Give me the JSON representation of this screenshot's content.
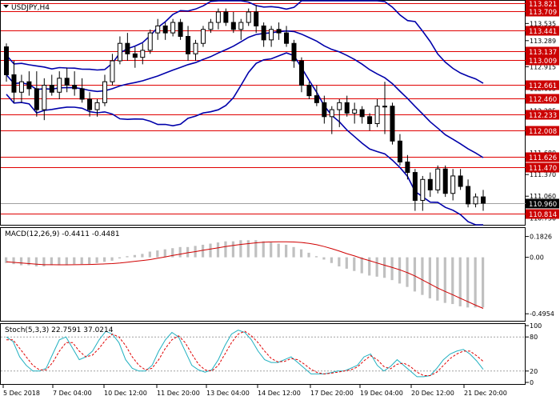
{
  "chart_data": [
    {
      "type": "candlestick",
      "title": "USDJPY,H4",
      "ylim": [
        110.65,
        113.86
      ],
      "y_ticks": [
        113.535,
        113.289,
        112.915,
        112.605,
        112.285,
        111.98,
        111.68,
        111.37,
        111.06,
        110.75
      ],
      "levels": [
        {
          "value": 113.821,
          "label": "113.821"
        },
        {
          "value": 113.709,
          "label": "113.709"
        },
        {
          "value": 113.441,
          "label": "113.441"
        },
        {
          "value": 113.137,
          "label": "113.137"
        },
        {
          "value": 113.009,
          "label": "113.009"
        },
        {
          "value": 112.661,
          "label": "112.661"
        },
        {
          "value": 112.46,
          "label": "112.460"
        },
        {
          "value": 112.233,
          "label": "112.233"
        },
        {
          "value": 112.008,
          "label": "112.008"
        },
        {
          "value": 111.626,
          "label": "111.626"
        },
        {
          "value": 111.47,
          "label": "111.470"
        },
        {
          "value": 110.814,
          "label": "110.814"
        }
      ],
      "current_price": {
        "value": 110.96,
        "label": "110.960"
      },
      "ohlc": [
        [
          113.2,
          113.25,
          112.7,
          112.8
        ],
        [
          112.8,
          113.0,
          112.4,
          112.55
        ],
        [
          112.55,
          112.8,
          112.4,
          112.7
        ],
        [
          112.7,
          112.85,
          112.5,
          112.6
        ],
        [
          112.6,
          112.85,
          112.2,
          112.3
        ],
        [
          112.3,
          112.75,
          112.15,
          112.65
        ],
        [
          112.65,
          112.8,
          112.5,
          112.55
        ],
        [
          112.55,
          112.85,
          112.45,
          112.75
        ],
        [
          112.75,
          112.9,
          112.55,
          112.65
        ],
        [
          112.65,
          112.85,
          112.5,
          112.6
        ],
        [
          112.6,
          112.75,
          112.4,
          112.45
        ],
        [
          112.45,
          112.55,
          112.2,
          112.3
        ],
        [
          112.3,
          112.45,
          112.2,
          112.4
        ],
        [
          112.4,
          112.8,
          112.35,
          112.7
        ],
        [
          112.7,
          113.1,
          112.65,
          113.0
        ],
        [
          113.0,
          113.35,
          112.95,
          113.25
        ],
        [
          113.25,
          113.4,
          113.0,
          113.1
        ],
        [
          113.1,
          113.2,
          112.9,
          113.05
        ],
        [
          113.05,
          113.25,
          112.95,
          113.15
        ],
        [
          113.15,
          113.45,
          113.1,
          113.4
        ],
        [
          113.4,
          113.6,
          113.3,
          113.5
        ],
        [
          113.5,
          113.55,
          113.3,
          113.4
        ],
        [
          113.4,
          113.6,
          113.35,
          113.55
        ],
        [
          113.55,
          113.6,
          113.3,
          113.35
        ],
        [
          113.35,
          113.5,
          113.0,
          113.1
        ],
        [
          113.1,
          113.3,
          113.0,
          113.25
        ],
        [
          113.25,
          113.5,
          113.2,
          113.45
        ],
        [
          113.45,
          113.6,
          113.4,
          113.55
        ],
        [
          113.55,
          113.75,
          113.45,
          113.7
        ],
        [
          113.7,
          113.75,
          113.5,
          113.55
        ],
        [
          113.55,
          113.7,
          113.4,
          113.45
        ],
        [
          113.45,
          113.6,
          113.3,
          113.55
        ],
        [
          113.55,
          113.75,
          113.5,
          113.7
        ],
        [
          113.7,
          113.8,
          113.4,
          113.5
        ],
        [
          113.5,
          113.55,
          113.2,
          113.3
        ],
        [
          113.3,
          113.5,
          113.2,
          113.45
        ],
        [
          113.45,
          113.55,
          113.3,
          113.4
        ],
        [
          113.4,
          113.5,
          113.2,
          113.25
        ],
        [
          113.25,
          113.3,
          112.9,
          113.0
        ],
        [
          113.0,
          113.05,
          112.55,
          112.65
        ],
        [
          112.65,
          112.7,
          112.45,
          112.5
        ],
        [
          112.5,
          112.65,
          112.35,
          112.4
        ],
        [
          112.4,
          112.5,
          112.1,
          112.2
        ],
        [
          112.2,
          112.35,
          111.95,
          112.3
        ],
        [
          112.3,
          112.45,
          112.05,
          112.4
        ],
        [
          112.4,
          112.5,
          112.2,
          112.25
        ],
        [
          112.25,
          112.4,
          112.1,
          112.3
        ],
        [
          112.3,
          112.35,
          112.1,
          112.2
        ],
        [
          112.2,
          112.25,
          112.0,
          112.1
        ],
        [
          112.1,
          112.45,
          112.05,
          112.35
        ],
        [
          112.35,
          112.7,
          111.95,
          112.35
        ],
        [
          112.35,
          112.4,
          111.8,
          111.85
        ],
        [
          111.85,
          111.95,
          111.5,
          111.55
        ],
        [
          111.55,
          111.65,
          111.3,
          111.4
        ],
        [
          111.4,
          111.45,
          110.85,
          111.0
        ],
        [
          111.0,
          111.35,
          110.85,
          111.3
        ],
        [
          111.3,
          111.4,
          111.05,
          111.15
        ],
        [
          111.15,
          111.5,
          111.1,
          111.45
        ],
        [
          111.45,
          111.5,
          111.05,
          111.1
        ],
        [
          111.1,
          111.45,
          111.0,
          111.35
        ],
        [
          111.35,
          111.45,
          111.15,
          111.2
        ],
        [
          111.2,
          111.3,
          110.9,
          110.95
        ],
        [
          110.95,
          111.1,
          110.9,
          111.05
        ],
        [
          111.05,
          111.15,
          110.85,
          110.96
        ]
      ]
    },
    {
      "type": "bar",
      "title": "MACD(12,26,9) -0.4411 -0.4481",
      "ylim": [
        -0.55,
        0.25
      ],
      "y_ticks": [
        {
          "value": 0.1826,
          "label": "0.1826"
        },
        {
          "value": 0.0,
          "label": "0.00"
        },
        {
          "value": -0.4954,
          "label": "-0.4954"
        }
      ],
      "series": [
        {
          "values": [
            -0.05,
            -0.06,
            -0.07,
            -0.07,
            -0.08,
            -0.08,
            -0.07,
            -0.07,
            -0.07,
            -0.06,
            -0.06,
            -0.06,
            -0.05,
            -0.04,
            -0.03,
            -0.01,
            0.01,
            0.02,
            0.03,
            0.05,
            0.06,
            0.07,
            0.08,
            0.09,
            0.09,
            0.1,
            0.11,
            0.12,
            0.13,
            0.14,
            0.14,
            0.15,
            0.15,
            0.15,
            0.14,
            0.13,
            0.12,
            0.11,
            0.09,
            0.07,
            0.04,
            0.01,
            -0.02,
            -0.05,
            -0.08,
            -0.1,
            -0.12,
            -0.14,
            -0.16,
            -0.17,
            -0.18,
            -0.2,
            -0.23,
            -0.26,
            -0.3,
            -0.33,
            -0.36,
            -0.38,
            -0.4,
            -0.41,
            -0.43,
            -0.44,
            -0.44,
            -0.44
          ]
        },
        {
          "values": [
            -0.04,
            -0.045,
            -0.05,
            -0.055,
            -0.06,
            -0.065,
            -0.065,
            -0.066,
            -0.066,
            -0.065,
            -0.064,
            -0.063,
            -0.061,
            -0.058,
            -0.055,
            -0.05,
            -0.043,
            -0.035,
            -0.028,
            -0.02,
            -0.008,
            0.004,
            0.016,
            0.028,
            0.04,
            0.05,
            0.062,
            0.073,
            0.084,
            0.095,
            0.104,
            0.113,
            0.12,
            0.127,
            0.132,
            0.135,
            0.136,
            0.136,
            0.134,
            0.13,
            0.122,
            0.11,
            0.094,
            0.075,
            0.054,
            0.032,
            0.012,
            -0.01,
            -0.03,
            -0.05,
            -0.07,
            -0.09,
            -0.11,
            -0.135,
            -0.165,
            -0.2,
            -0.235,
            -0.27,
            -0.3,
            -0.33,
            -0.36,
            -0.39,
            -0.42,
            -0.448
          ]
        }
      ]
    },
    {
      "type": "line",
      "title": "Stoch(5,3,3) 22.7591 37.0214",
      "ylim": [
        0,
        100
      ],
      "y_ticks": [
        {
          "value": 100,
          "label": "100"
        },
        {
          "value": 80,
          "label": "80"
        },
        {
          "value": 20,
          "label": "20"
        },
        {
          "value": 0,
          "label": "0"
        }
      ],
      "series": [
        {
          "values": [
            80,
            72,
            45,
            30,
            20,
            20,
            25,
            50,
            75,
            80,
            60,
            40,
            45,
            55,
            75,
            90,
            85,
            70,
            40,
            25,
            20,
            20,
            30,
            55,
            75,
            88,
            80,
            55,
            30,
            22,
            18,
            22,
            40,
            65,
            85,
            92,
            88,
            75,
            55,
            40,
            35,
            35,
            40,
            45,
            35,
            25,
            15,
            15,
            15,
            17,
            20,
            20,
            25,
            30,
            45,
            50,
            30,
            20,
            28,
            40,
            30,
            20,
            10,
            10,
            12,
            25,
            40,
            50,
            55,
            58,
            50,
            38,
            23
          ]
        },
        {
          "values": [
            75,
            75,
            60,
            45,
            30,
            22,
            22,
            35,
            55,
            70,
            70,
            55,
            45,
            48,
            60,
            75,
            85,
            80,
            65,
            45,
            30,
            22,
            25,
            40,
            60,
            75,
            82,
            70,
            50,
            32,
            22,
            20,
            30,
            50,
            70,
            85,
            90,
            82,
            70,
            55,
            42,
            36,
            37,
            42,
            40,
            32,
            23,
            17,
            15,
            16,
            18,
            20,
            22,
            27,
            38,
            47,
            40,
            28,
            24,
            32,
            34,
            28,
            18,
            12,
            12,
            18,
            30,
            42,
            50,
            55,
            55,
            47,
            37
          ]
        }
      ]
    }
  ],
  "time_axis": [
    "5 Dec 2018",
    "7 Dec 04:00",
    "10 Dec 12:00",
    "11 Dec 20:00",
    "13 Dec 04:00",
    "14 Dec 12:00",
    "17 Dec 20:00",
    "19 Dec 04:00",
    "20 Dec 12:00",
    "21 Dec 20:00"
  ],
  "colors": {
    "level_line": "#e00000",
    "bollinger": "#0000aa",
    "candle": "#000000",
    "macd_hist": "#c0c0c0",
    "macd_signal": "#d00000",
    "stoch_main": "#20b0c0",
    "stoch_signal": "#e00000",
    "label_box": "#cc0000",
    "price_box": "#000000"
  }
}
